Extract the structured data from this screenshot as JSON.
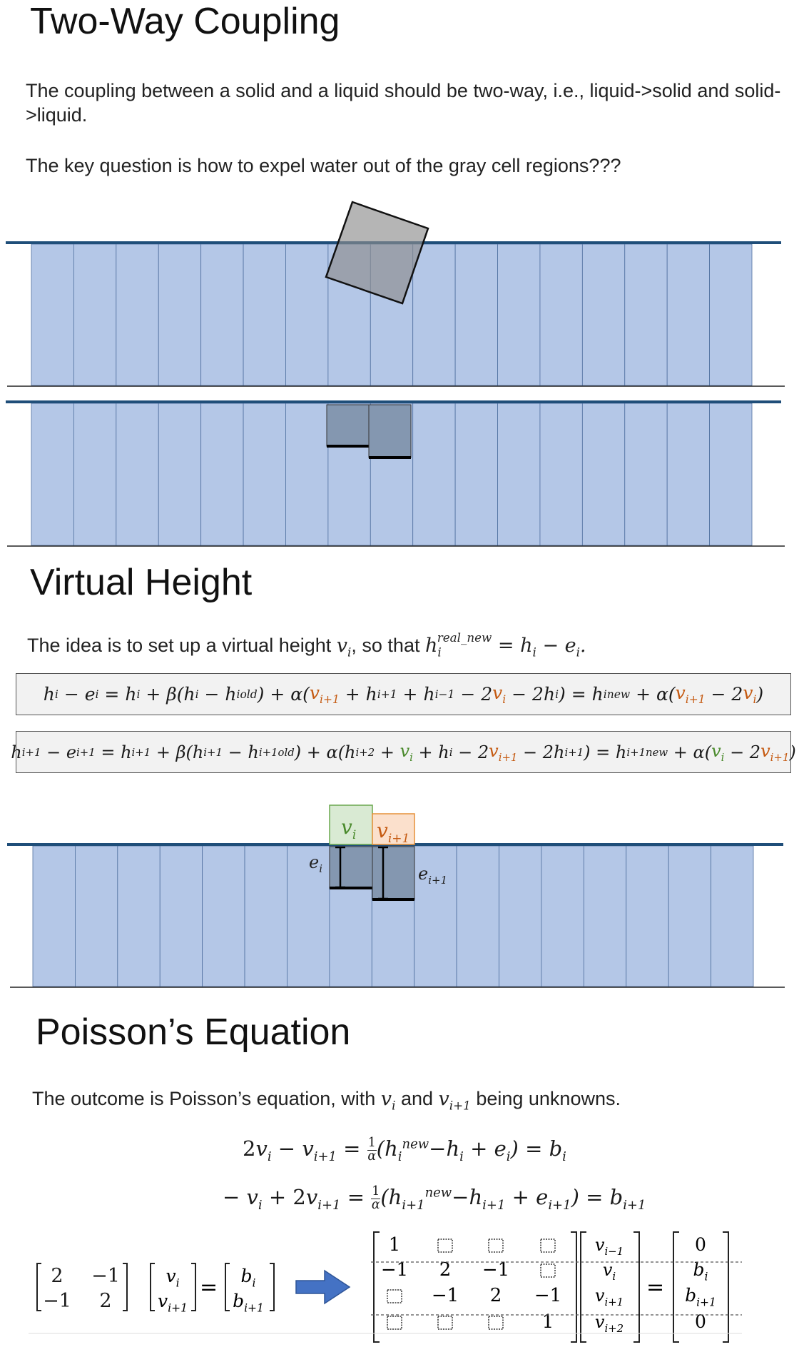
{
  "section1": {
    "title": "Two-Way Coupling",
    "para1": "The coupling between a solid and a liquid should be two-way, i.e., liquid->solid and solid->liquid.",
    "para2": "The key question is how to expel water out of the gray cell regions???"
  },
  "section2": {
    "title": "Virtual Height",
    "intro_text": "The idea is to set up a virtual height",
    "intro_so_that": ", so that"
  },
  "diagram3": {
    "vi_label": "v",
    "vi_sub": "i",
    "vi1_label": "v",
    "vi1_sub": "i+1",
    "ei_label": "e",
    "ei_sub": "i",
    "ei1_label": "e",
    "ei1_sub": "i+1"
  },
  "section3": {
    "title": "Poisson’s Equation",
    "outcome_text": "The outcome is Poisson’s equation, with",
    "outcome_and": "and",
    "outcome_tail": "being unknowns."
  },
  "matrix_small": {
    "rows": [
      [
        "2",
        "−1"
      ],
      [
        "−1",
        "2"
      ]
    ],
    "x": [
      "v_i",
      "v_i+1"
    ],
    "b": [
      "b_i",
      "b_i+1"
    ]
  },
  "matrix_big": {
    "rows": [
      [
        "1",
        "",
        "",
        ""
      ],
      [
        "−1",
        "2",
        "−1",
        ""
      ],
      [
        "",
        "−1",
        "2",
        "−1"
      ],
      [
        "",
        "",
        "",
        "1"
      ]
    ],
    "x": [
      "v_i−1",
      "v_i",
      "v_i+1",
      "v_i+2"
    ],
    "b": [
      "0",
      "b_i",
      "b_i+1",
      "0"
    ]
  },
  "colors": {
    "water": "#b4c7e7",
    "water_line": "#1f4e79",
    "solid": "#8497b0",
    "solid_gray": "#a6a6a6",
    "green_box": "#d9ead3",
    "orange_box": "#fbe0cc",
    "accent_orange": "#c55a11",
    "accent_green": "#4a8a2c",
    "arrow": "#4472c4"
  }
}
